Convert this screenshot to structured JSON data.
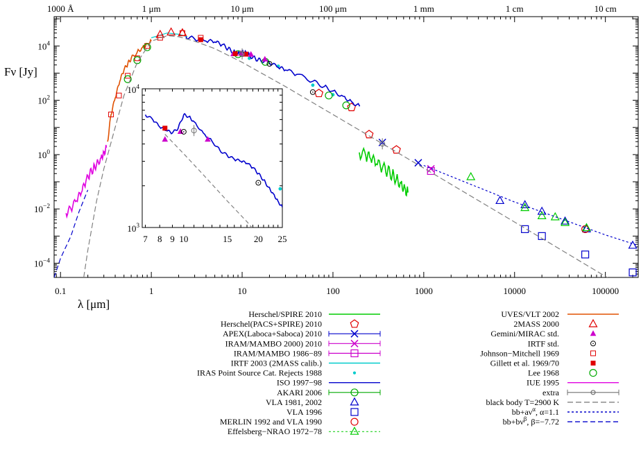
{
  "chart_data": {
    "type": "scatter",
    "x_scale": "log",
    "y_scale": "log",
    "xlim": [
      0.085,
      230000
    ],
    "ylim": [
      3e-05,
      120000
    ],
    "xlabel": "λ [μm]",
    "ylabel": "Fν [Jy]",
    "grid": false,
    "legend_position": "bottom",
    "x_ticks": [
      {
        "value": 0.1,
        "label": "0.1"
      },
      {
        "value": 1,
        "label": "1"
      },
      {
        "value": 10,
        "label": "10"
      },
      {
        "value": 100,
        "label": "100"
      },
      {
        "value": 1000,
        "label": "1000"
      },
      {
        "value": 10000,
        "label": "10000"
      },
      {
        "value": 100000,
        "label": "100000"
      }
    ],
    "x_ticks_top": [
      {
        "value": 0.1,
        "label": "1000 Å"
      },
      {
        "value": 1,
        "label": "1 μm"
      },
      {
        "value": 10,
        "label": "10 μm"
      },
      {
        "value": 100,
        "label": "100 μm"
      },
      {
        "value": 1000,
        "label": "1 mm"
      },
      {
        "value": 10000,
        "label": "1 cm"
      },
      {
        "value": 100000,
        "label": "10 cm"
      }
    ],
    "y_ticks": [
      {
        "value": 0.0001,
        "base": "10",
        "exp": "−4"
      },
      {
        "value": 0.01,
        "base": "10",
        "exp": "−2"
      },
      {
        "value": 1,
        "base": "10",
        "exp": "0"
      },
      {
        "value": 100,
        "base": "10",
        "exp": "2"
      },
      {
        "value": 10000,
        "base": "10",
        "exp": "4"
      }
    ],
    "series": [
      {
        "name": "Herschel/SPIRE 2010",
        "color": "#00cc00",
        "kind": "spectrum",
        "x": [
          195,
          230,
          260,
          300,
          350,
          400,
          450,
          500,
          560,
          620,
          670
        ],
        "y": [
          1.2,
          0.9,
          0.7,
          0.45,
          0.32,
          0.25,
          0.18,
          0.13,
          0.09,
          0.06,
          0.04
        ]
      },
      {
        "name": "Herschel(PACS+SPIRE) 2010",
        "color": "#e00000",
        "kind": "marker",
        "marker": "pentagon",
        "x": [
          70,
          160,
          250,
          500
        ],
        "y": [
          180,
          55,
          5.5,
          1.5
        ]
      },
      {
        "name": "APEX(Laboca+Saboca) 2010",
        "color": "#0000cc",
        "kind": "marker",
        "marker": "x",
        "x": [
          350,
          870
        ],
        "y": [
          2.8,
          0.5
        ]
      },
      {
        "name": "IRAM/MAMBO 2000) 2010",
        "color": "#cc00cc",
        "kind": "marker",
        "marker": "x",
        "x": [
          1200
        ],
        "y": [
          0.3
        ]
      },
      {
        "name": "IRAM/MAMBO 1986−89",
        "color": "#cc00cc",
        "kind": "marker",
        "marker": "square",
        "x": [
          1200
        ],
        "y": [
          0.25
        ]
      },
      {
        "name": "IRTF 2003 (2MASS calib.)",
        "color": "#00cccc",
        "kind": "line",
        "x": [
          1.0,
          1.5,
          2.0,
          2.5
        ],
        "y": [
          20000,
          30000,
          27000,
          22000
        ]
      },
      {
        "name": "IRAS Point Source Cat. Rejects 1988",
        "color": "#00cccc",
        "kind": "marker",
        "marker": "dot",
        "x": [
          12,
          25,
          60,
          100
        ],
        "y": [
          3500,
          1800,
          360,
          160
        ]
      },
      {
        "name": "ISO 1997−98",
        "color": "#0000cc",
        "kind": "spectrum",
        "x": [
          2.4,
          3,
          4,
          5,
          6,
          7,
          8,
          9,
          10,
          11,
          12,
          14,
          16,
          20,
          25,
          30,
          40,
          60,
          80,
          100,
          130,
          160,
          197
        ],
        "y": [
          22000,
          18000,
          15000,
          14000,
          11000,
          8000,
          6000,
          5200,
          6200,
          6000,
          4500,
          3400,
          2900,
          2400,
          1600,
          1300,
          900,
          500,
          320,
          220,
          140,
          90,
          60
        ]
      },
      {
        "name": "AKARI 2006",
        "color": "#00aa00",
        "kind": "marker",
        "marker": "circle",
        "x": [
          9,
          18,
          90,
          140
        ],
        "y": [
          5000,
          2600,
          150,
          65
        ]
      },
      {
        "name": "VLA 1981, 2002",
        "color": "#0000cc",
        "kind": "marker",
        "marker": "triangle",
        "x": [
          6900,
          13000,
          20000,
          36000,
          62000,
          200000
        ],
        "y": [
          0.02,
          0.014,
          0.008,
          0.0035,
          0.0018,
          0.00045
        ]
      },
      {
        "name": "VLA 1996",
        "color": "#0000cc",
        "kind": "marker",
        "marker": "square",
        "x": [
          13000,
          20000,
          60000,
          200000
        ],
        "y": [
          0.0018,
          0.001,
          0.00021,
          4.6e-05
        ]
      },
      {
        "name": "MERLIN 1992 and VLA 1990",
        "color": "#e00000",
        "kind": "marker",
        "marker": "circle",
        "x": [
          60000
        ],
        "y": [
          0.0018
        ]
      },
      {
        "name": "Effelsberg−NRAO 1972−78",
        "color": "#00cc00",
        "kind": "marker",
        "marker": "triangle",
        "x": [
          3300,
          13000,
          20000,
          28000,
          36000,
          62000
        ],
        "y": [
          0.15,
          0.011,
          0.0055,
          0.005,
          0.0031,
          0.002
        ]
      },
      {
        "name": "UVES/VLT 2002",
        "color": "#e05000",
        "kind": "spectrum",
        "x": [
          0.33,
          0.36,
          0.4,
          0.45,
          0.5,
          0.55,
          0.6,
          0.7,
          0.8,
          0.9,
          1.0
        ],
        "y": [
          3,
          30,
          120,
          500,
          1300,
          2200,
          3500,
          6000,
          9000,
          12000,
          15000
        ]
      },
      {
        "name": "2MASS 2000",
        "color": "#e00000",
        "kind": "marker",
        "marker": "triangle-small",
        "x": [
          1.25,
          1.65,
          2.2
        ],
        "y": [
          26000,
          32000,
          30000
        ]
      },
      {
        "name": "Gemini/MIRAC std.",
        "color": "#cc00cc",
        "kind": "marker",
        "marker": "triangle-filled",
        "x": [
          8,
          9.7,
          12.5,
          17.8
        ],
        "y": [
          5000,
          5200,
          4800,
          3200
        ]
      },
      {
        "name": "IRTF std.",
        "color": "#000000",
        "kind": "marker",
        "marker": "circle-dot",
        "x": [
          10,
          20,
          60
        ],
        "y": [
          5000,
          2200,
          200
        ]
      },
      {
        "name": "Johnson−Mitchell 1969",
        "color": "#e00000",
        "kind": "marker",
        "marker": "square-dot",
        "x": [
          0.36,
          0.44,
          0.55,
          0.7,
          0.9,
          1.25,
          2.2,
          3.5
        ],
        "y": [
          30,
          150,
          800,
          3500,
          10000,
          20000,
          30000,
          20000
        ]
      },
      {
        "name": "Gillett et al. 1969/70",
        "color": "#e00000",
        "kind": "marker",
        "marker": "square-filled",
        "x": [
          3.5,
          8.4,
          11
        ],
        "y": [
          17000,
          5200,
          5000
        ]
      },
      {
        "name": "Lee 1968",
        "color": "#00aa00",
        "kind": "marker",
        "marker": "circle",
        "x": [
          0.55,
          0.7,
          0.9
        ],
        "y": [
          600,
          3000,
          9000
        ]
      },
      {
        "name": "IUE 1995",
        "color": "#e000e0",
        "kind": "spectrum",
        "x": [
          0.115,
          0.13,
          0.15,
          0.17,
          0.19,
          0.21,
          0.23,
          0.25,
          0.28,
          0.3,
          0.32
        ],
        "y": [
          0.007,
          0.01,
          0.02,
          0.04,
          0.1,
          0.2,
          0.3,
          0.45,
          0.8,
          1.2,
          1.8
        ]
      },
      {
        "name": "extra",
        "color": "#707070",
        "kind": "marker",
        "marker": "circle-errorbar",
        "x": [
          10,
          350
        ],
        "y": [
          5100,
          2.5
        ]
      },
      {
        "name": "black body T=2900 K",
        "color": "#808080",
        "kind": "line",
        "dash": "8,4",
        "x": [
          0.18,
          0.2,
          0.25,
          0.3,
          0.4,
          0.5,
          0.7,
          1,
          1.5,
          2,
          3,
          5,
          10,
          30,
          100,
          1000,
          10000,
          100000,
          230000
        ],
        "y": [
          3e-05,
          0.0003,
          0.02,
          0.3,
          10,
          150,
          2500,
          15000,
          24000,
          22000,
          15000,
          8000,
          2500,
          320,
          30,
          0.32,
          0.0033,
          3.3e-05,
          6e-06
        ]
      },
      {
        "name": "bb+aν^α, α=1.1",
        "color": "#0000cc",
        "kind": "line",
        "dash": "3,3",
        "x": [
          1000,
          10000,
          100000,
          230000
        ],
        "y": [
          0.4,
          0.018,
          0.0011,
          0.00045
        ]
      },
      {
        "name": "bb+bν^β, β=−7.72",
        "color": "#0000cc",
        "kind": "line",
        "dash": "7,4",
        "x": [
          0.085,
          0.1,
          0.13,
          0.16,
          0.2
        ],
        "y": [
          3e-05,
          0.00015,
          0.001,
          0.008,
          0.05
        ]
      }
    ],
    "inset": {
      "x_scale": "log",
      "y_scale": "log",
      "xlim": [
        6.8,
        25
      ],
      "ylim": [
        1000,
        10000
      ],
      "x_ticks": [
        {
          "value": 7,
          "label": "7"
        },
        {
          "value": 8,
          "label": "8"
        },
        {
          "value": 9,
          "label": "9"
        },
        {
          "value": 10,
          "label": "10"
        },
        {
          "value": 15,
          "label": "15"
        },
        {
          "value": 20,
          "label": "20"
        },
        {
          "value": 25,
          "label": "25"
        }
      ],
      "y_ticks": [
        {
          "value": 1000,
          "base": "10",
          "exp": "3"
        },
        {
          "value": 10000,
          "base": "10",
          "exp": "4"
        }
      ],
      "iso": {
        "x": [
          7,
          7.5,
          8,
          8.5,
          9,
          9.5,
          10,
          10.5,
          11,
          12,
          13,
          14,
          15,
          16,
          17,
          18,
          19,
          20,
          21,
          22,
          23,
          24,
          25
        ],
        "y": [
          6500,
          6000,
          5300,
          5000,
          4800,
          5200,
          6500,
          6300,
          5800,
          4800,
          4200,
          3600,
          3300,
          3100,
          3000,
          2900,
          2700,
          2450,
          2200,
          1950,
          1750,
          1550,
          1400
        ]
      },
      "blackbody": {
        "x": [
          8.4,
          10,
          12,
          15,
          18,
          20
        ],
        "y": [
          4700,
          3400,
          2400,
          1550,
          1100,
          880
        ]
      },
      "points": [
        {
          "marker": "square-filled",
          "color": "#e00000",
          "x": 8.4,
          "y": 5200
        },
        {
          "marker": "triangle-filled",
          "color": "#cc00cc",
          "x": 8.4,
          "y": 4300
        },
        {
          "marker": "triangle-filled",
          "color": "#cc00cc",
          "x": 9.7,
          "y": 4900
        },
        {
          "marker": "circle-dot",
          "color": "#000000",
          "x": 10,
          "y": 4900
        },
        {
          "marker": "triangle-filled",
          "color": "#cc00cc",
          "x": 12.5,
          "y": 4300
        },
        {
          "marker": "circle-errorbar",
          "color": "#707070",
          "x": 11,
          "y": 5000
        },
        {
          "marker": "circle-dot",
          "color": "#000000",
          "x": 20,
          "y": 2100
        },
        {
          "marker": "dot",
          "color": "#00cccc",
          "x": 24.5,
          "y": 1900
        }
      ]
    }
  }
}
